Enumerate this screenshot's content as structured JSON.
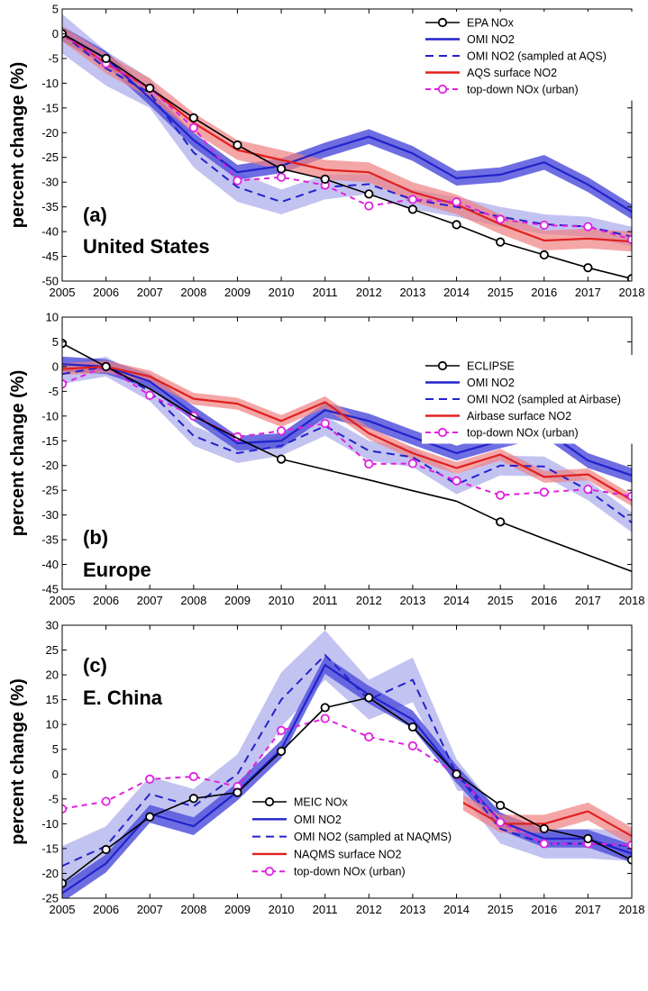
{
  "chart_data": [
    {
      "type": "line",
      "panel_label": "(a)",
      "region": "United States",
      "ylabel": "percent change (%)",
      "xlabel": "",
      "x": [
        2005,
        2006,
        2007,
        2008,
        2009,
        2010,
        2011,
        2012,
        2013,
        2014,
        2015,
        2016,
        2017,
        2018
      ],
      "xlim": [
        2005,
        2018
      ],
      "ylim": [
        -50,
        5
      ],
      "yticks": [
        5,
        0,
        -5,
        -10,
        -15,
        -20,
        -25,
        -30,
        -35,
        -40,
        -45,
        -50
      ],
      "legend_position": "top-right",
      "series": [
        {
          "name": "EPA NOx",
          "style": "black-line-circles",
          "color": "#000000",
          "values": [
            0,
            -5,
            -11,
            -17,
            -22.5,
            -27.3,
            -29.4,
            -32.4,
            -35.5,
            -38.6,
            -42.1,
            -44.7,
            -47.3,
            -49.5
          ]
        },
        {
          "name": "OMI NO2",
          "style": "blue-solid-band",
          "color": "#2222cc",
          "values": [
            0,
            -5,
            -13,
            -21.5,
            -28,
            -26.7,
            -23.5,
            -20.8,
            -24.2,
            -29.2,
            -28.5,
            -26,
            -30.5,
            -36
          ],
          "band": [
            1.5,
            1.5,
            1.5,
            1.5,
            1.5,
            1.5,
            1.5,
            1.5,
            1.5,
            1.5,
            1.5,
            1.5,
            1.5,
            1.5
          ]
        },
        {
          "name": "OMI NO2 (sampled at AQS)",
          "style": "blue-dashed-band",
          "color": "#2222cc",
          "values": [
            0,
            -7,
            -12,
            -24,
            -31,
            -34,
            -31,
            -30.4,
            -33.5,
            -35,
            -37,
            -38.5,
            -39,
            -41
          ],
          "band": [
            4,
            3.5,
            3,
            3,
            3,
            2.5,
            2.5,
            2,
            2,
            2,
            2,
            2,
            2,
            2
          ]
        },
        {
          "name": "AQS surface NO2",
          "style": "red-solid-band",
          "color": "#e02020",
          "values": [
            0,
            -6,
            -11,
            -18,
            -23.5,
            -25.5,
            -27.5,
            -28,
            -32,
            -34.5,
            -38.5,
            -41.8,
            -41.4,
            -42
          ],
          "band": [
            1.5,
            2,
            2,
            2,
            2,
            2,
            2,
            2,
            2,
            2,
            2,
            2,
            2,
            2
          ]
        },
        {
          "name": "top-down NOx (urban)",
          "style": "magenta-dashed-circles",
          "color": "#e020e0",
          "values": [
            0,
            -6,
            -11,
            -19,
            -29.7,
            -29,
            -30.6,
            -34.8,
            -33.5,
            -34,
            -37.5,
            -38.7,
            -39,
            -41.6
          ]
        }
      ]
    },
    {
      "type": "line",
      "panel_label": "(b)",
      "region": "Europe",
      "ylabel": "percent change (%)",
      "xlabel": "",
      "x": [
        2005,
        2006,
        2007,
        2008,
        2009,
        2010,
        2011,
        2012,
        2013,
        2014,
        2015,
        2016,
        2017,
        2018
      ],
      "xlim": [
        2005,
        2018
      ],
      "ylim": [
        -45,
        10
      ],
      "yticks": [
        10,
        5,
        0,
        -5,
        -10,
        -15,
        -20,
        -25,
        -30,
        -35,
        -40,
        -45
      ],
      "legend_position": "top-right",
      "series": [
        {
          "name": "ECLIPSE",
          "style": "black-line-circles",
          "color": "#000000",
          "marker_years": [
            2005,
            2006,
            2010,
            2015
          ],
          "values": [
            4.7,
            0,
            -4.5,
            -10,
            -14.5,
            -18.7,
            -20.8,
            -22.9,
            -25.1,
            -27.2,
            -31.4,
            -34.8,
            -38.1,
            -41.4
          ]
        },
        {
          "name": "OMI NO2",
          "style": "blue-solid-band",
          "color": "#2222cc",
          "values": [
            0.5,
            0,
            -3,
            -9.5,
            -15.5,
            -15,
            -8.8,
            -11,
            -14.3,
            -17.5,
            -15,
            -12.8,
            -19,
            -22
          ],
          "band": [
            1.5,
            1.5,
            1.5,
            1.5,
            1.5,
            1.5,
            1.5,
            1.5,
            1.5,
            1.5,
            1.5,
            1.5,
            1.5,
            1.5
          ]
        },
        {
          "name": "OMI NO2 (sampled at Airbase)",
          "style": "blue-dashed-band",
          "color": "#2222cc",
          "values": [
            -1.5,
            0,
            -5,
            -14,
            -17.5,
            -16,
            -12,
            -17,
            -18.3,
            -23.8,
            -20,
            -20.2,
            -25,
            -31.5
          ],
          "band": [
            2,
            2,
            2,
            2,
            2,
            2,
            2,
            2,
            2,
            2,
            2,
            2,
            2,
            2
          ]
        },
        {
          "name": "Airbase surface NO2",
          "style": "red-solid-band",
          "color": "#e02020",
          "values": [
            -0.5,
            0,
            -2,
            -6.5,
            -7.5,
            -11,
            -7.2,
            -13.5,
            -17.5,
            -20.5,
            -17.8,
            -22.3,
            -21.8,
            -27
          ],
          "band": [
            1.2,
            1.2,
            1.2,
            1.2,
            1.2,
            1.2,
            1.2,
            1.2,
            1.2,
            1.2,
            1.2,
            1.2,
            1.2,
            1.2
          ]
        },
        {
          "name": "top-down NOx (urban)",
          "style": "magenta-dashed-circles",
          "color": "#e020e0",
          "values": [
            -3.5,
            0,
            -5.8,
            -10,
            -14.2,
            -13,
            -11.5,
            -19.7,
            -19.6,
            -23.1,
            -26,
            -25.4,
            -24.8,
            -26.2
          ]
        }
      ]
    },
    {
      "type": "line",
      "panel_label": "(c)",
      "region": "E. China",
      "ylabel": "percent change (%)",
      "xlabel": "",
      "x": [
        2005,
        2006,
        2007,
        2008,
        2009,
        2010,
        2011,
        2012,
        2013,
        2014,
        2015,
        2016,
        2017,
        2018
      ],
      "xlim": [
        2005,
        2018
      ],
      "ylim": [
        -25,
        30
      ],
      "yticks": [
        30,
        25,
        20,
        15,
        10,
        5,
        0,
        -5,
        -10,
        -15,
        -20,
        -25
      ],
      "legend_position": "bottom-left",
      "series": [
        {
          "name": "MEIC NOx",
          "style": "black-line-circles",
          "color": "#000000",
          "values": [
            -22,
            -15.2,
            -8.6,
            -4.9,
            -3.7,
            4.6,
            13.4,
            15.4,
            9.5,
            0,
            -6.3,
            -11,
            -13,
            -17.3
          ]
        },
        {
          "name": "OMI NO2",
          "style": "blue-solid-band",
          "color": "#2222cc",
          "values": [
            -24,
            -18,
            -8,
            -10.5,
            -3.5,
            5,
            22,
            16,
            11,
            0,
            -9.5,
            -13,
            -13,
            -16
          ],
          "band": [
            1.8,
            1.8,
            1.8,
            1.8,
            1.8,
            1.8,
            1.8,
            1.8,
            1.8,
            1.8,
            1.8,
            1.8,
            1.8,
            1.8
          ]
        },
        {
          "name": "OMI NO2 (sampled at NAQMS)",
          "style": "blue-dashed-band",
          "color": "#2222cc",
          "values": [
            -18.5,
            -14.5,
            -4,
            -6.5,
            0,
            15,
            24,
            15,
            19,
            0,
            -11,
            -14,
            -14,
            -14.5
          ],
          "band": [
            4,
            4,
            3.5,
            3.5,
            4,
            5.5,
            5,
            4,
            4.5,
            3,
            3,
            3,
            3,
            3
          ]
        },
        {
          "name": "NAQMS surface NO2",
          "style": "red-solid-band",
          "color": "#e02020",
          "start_index": 9,
          "values": [
            null,
            null,
            null,
            null,
            null,
            null,
            null,
            null,
            null,
            -5,
            -10,
            -10,
            -7.5,
            -12.5
          ],
          "band": [
            0,
            0,
            0,
            0,
            0,
            0,
            0,
            0,
            0,
            1.5,
            1.8,
            1.8,
            1.8,
            1.8
          ]
        },
        {
          "name": "top-down NOx (urban)",
          "style": "magenta-dashed-circles",
          "color": "#e020e0",
          "values": [
            -7,
            -5.5,
            -1,
            -0.5,
            -2.5,
            8.8,
            11.2,
            7.5,
            5.7,
            0,
            -9.7,
            -14,
            -14,
            -14.3
          ]
        }
      ]
    }
  ]
}
